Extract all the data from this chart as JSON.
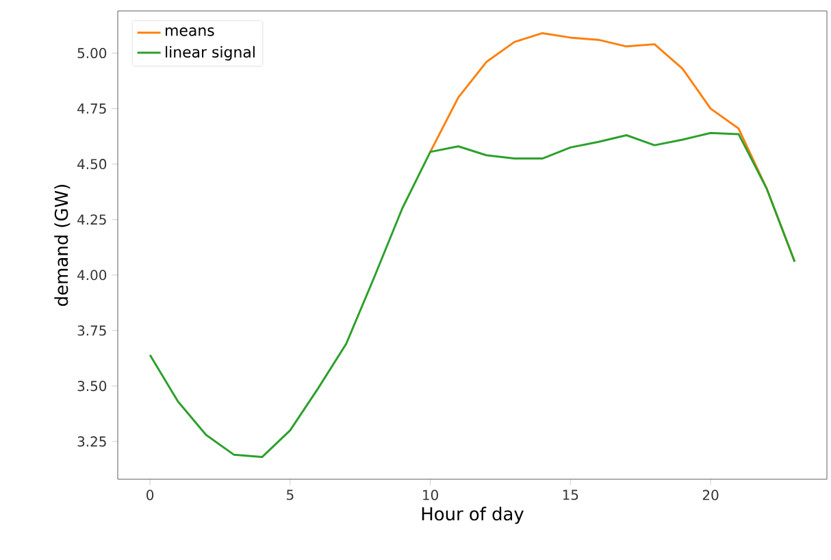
{
  "chart_data": {
    "type": "line",
    "xlabel": "Hour of day",
    "ylabel": "demand (GW)",
    "x": [
      0,
      1,
      2,
      3,
      4,
      5,
      6,
      7,
      8,
      9,
      10,
      11,
      12,
      13,
      14,
      15,
      16,
      17,
      18,
      19,
      20,
      21,
      22,
      23
    ],
    "series": [
      {
        "name": "means",
        "color": "#ff7f0e",
        "values": [
          null,
          null,
          null,
          null,
          null,
          null,
          null,
          null,
          null,
          null,
          4.555,
          4.8,
          4.96,
          5.05,
          5.09,
          5.07,
          5.06,
          5.03,
          5.04,
          4.93,
          4.75,
          4.66,
          4.39,
          4.06
        ]
      },
      {
        "name": "linear signal",
        "color": "#2ca02c",
        "values": [
          3.64,
          3.43,
          3.28,
          3.19,
          3.18,
          3.3,
          3.49,
          3.69,
          3.99,
          4.3,
          4.555,
          4.58,
          4.54,
          4.525,
          4.525,
          4.575,
          4.6,
          4.63,
          4.585,
          4.61,
          4.64,
          4.635,
          4.39,
          4.06
        ]
      }
    ],
    "xlim": [
      -1.15,
      24.15
    ],
    "ylim": [
      3.08,
      5.19
    ],
    "xticks": [
      0,
      5,
      10,
      15,
      20
    ],
    "yticks": [
      {
        "value": 3.25,
        "label": "3.25"
      },
      {
        "value": 3.5,
        "label": "3.50"
      },
      {
        "value": 3.75,
        "label": "3.75"
      },
      {
        "value": 4.0,
        "label": "4.00"
      },
      {
        "value": 4.25,
        "label": "4.25"
      },
      {
        "value": 4.5,
        "label": "4.50"
      },
      {
        "value": 4.75,
        "label": "4.75"
      },
      {
        "value": 5.0,
        "label": "5.00"
      }
    ],
    "legend": "top left",
    "grid": false,
    "marker": "none",
    "line_style": "solid"
  }
}
